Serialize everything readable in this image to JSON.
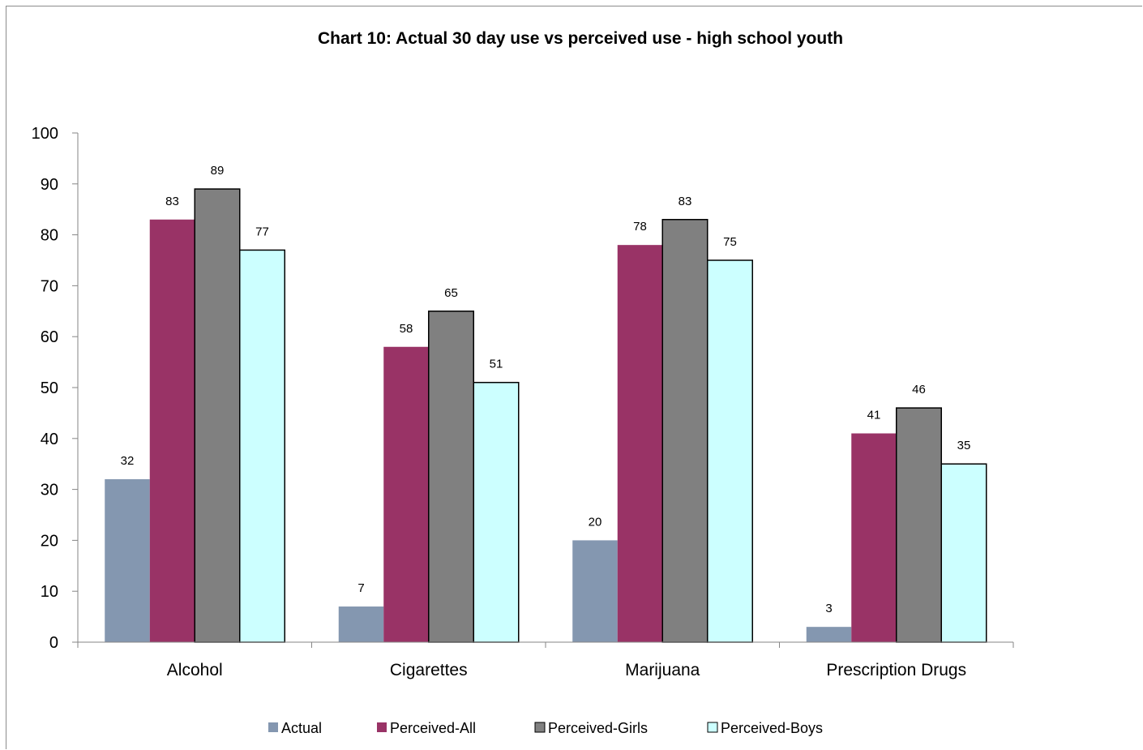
{
  "chart_data": {
    "type": "bar",
    "title": "Chart 10:  Actual 30 day use vs perceived use - high school youth",
    "xlabel": "",
    "ylabel": "",
    "categories": [
      "Alcohol",
      "Cigarettes",
      "Marijuana",
      "Prescription Drugs"
    ],
    "ylim": [
      0,
      100
    ],
    "yticks": [
      0,
      10,
      20,
      30,
      40,
      50,
      60,
      70,
      80,
      90,
      100
    ],
    "grid": false,
    "legend_position": "bottom",
    "series": [
      {
        "name": "Actual",
        "values": [
          32,
          7,
          20,
          3
        ],
        "color": "#8497B0",
        "outlined": false
      },
      {
        "name": "Perceived-All",
        "values": [
          83,
          58,
          78,
          41
        ],
        "color": "#993366",
        "outlined": false
      },
      {
        "name": "Perceived-Girls",
        "values": [
          89,
          65,
          83,
          46
        ],
        "color": "#808080",
        "outlined": true
      },
      {
        "name": "Perceived-Boys",
        "values": [
          77,
          51,
          75,
          35
        ],
        "color": "#CCFFFF",
        "outlined": true
      }
    ]
  }
}
